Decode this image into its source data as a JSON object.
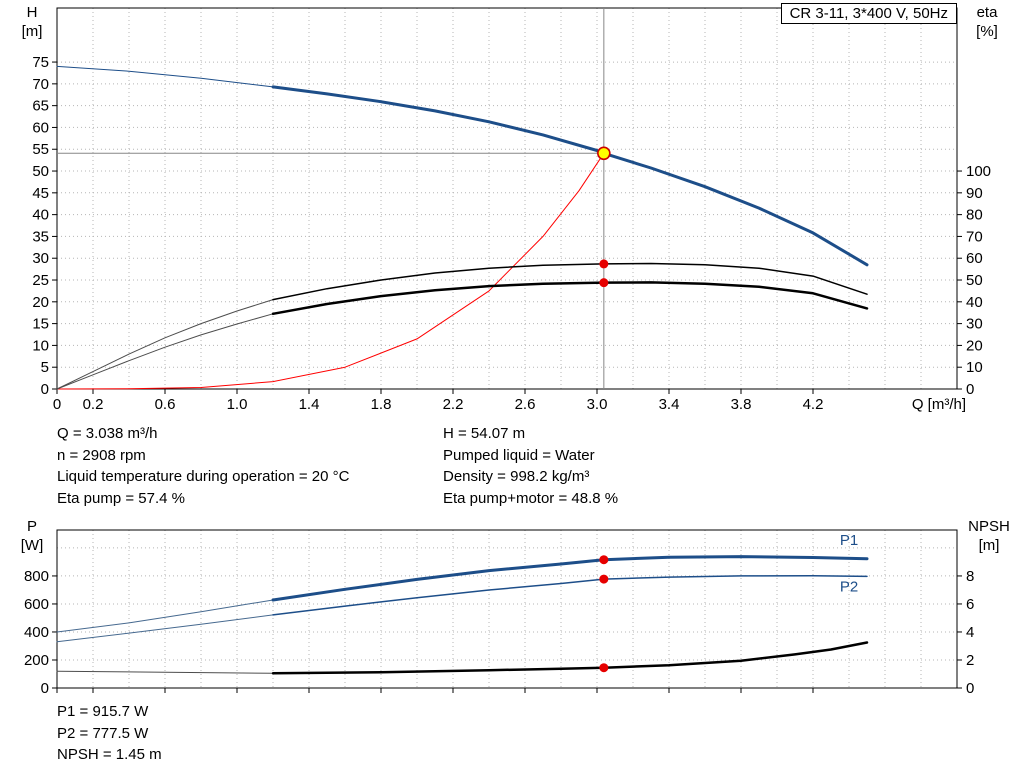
{
  "colors": {
    "curve_blue": "#1d4e89",
    "curve_red": "#ff0000",
    "marker_red": "#e60000",
    "duty_fill": "#ffff00",
    "duty_stroke": "#cc0000",
    "grid": "#b5b5b5",
    "guide": "#878787",
    "lead_gray": "#4d4d4d",
    "lead_blue": "#46698f"
  },
  "info": {
    "q": "Q = 3.038 m³/h",
    "n": "n = 2908 rpm",
    "temp": "Liquid temperature during operation = 20 °C",
    "eta_pump": "Eta pump = 57.4 %",
    "h": "H = 54.07 m",
    "liquid": "Pumped liquid = Water",
    "density": "Density = 998.2 kg/m³",
    "eta_total": "Eta pump+motor = 48.8 %"
  },
  "footer": {
    "p1": "P1 = 915.7 W",
    "p2": "P2 = 777.5 W",
    "npsh": "NPSH = 1.45 m"
  },
  "chart_data": [
    {
      "type": "line",
      "name": "hq-eta-chart",
      "title": "CR 3-11, 3*400 V, 50Hz",
      "x": {
        "label": "Q [m³/h]",
        "min": 0,
        "max": 5.0,
        "minor_step": 0.2,
        "tick_values": [
          0,
          0.2,
          0.6,
          1.0,
          1.4,
          1.8,
          2.2,
          2.6,
          3.0,
          3.4,
          3.8,
          4.2
        ],
        "tick_labels": [
          "0",
          "0.2",
          "0.6",
          "1.0",
          "1.4",
          "1.8",
          "2.2",
          "2.6",
          "3.0",
          "3.4",
          "3.8",
          "4.2"
        ]
      },
      "left": {
        "title_line1": "H",
        "title_line2": "[m]",
        "min": 0,
        "max": 87.4,
        "ticks": [
          0,
          5,
          10,
          15,
          20,
          25,
          30,
          35,
          40,
          45,
          50,
          55,
          60,
          65,
          70,
          75
        ],
        "grid_values": [
          5,
          10,
          15,
          20,
          25,
          30,
          35,
          40,
          45,
          50,
          55,
          60,
          65,
          70,
          75
        ]
      },
      "right": {
        "title_line1": "eta",
        "title_line2": "[%]",
        "ticks": [
          0,
          10,
          20,
          30,
          40,
          50,
          60,
          70,
          80,
          90,
          100
        ],
        "left_units_per_unit": 0.5
      },
      "series": [
        {
          "name": "h-curve-lead",
          "axis": "left",
          "color": "#1d4e89",
          "width": 1,
          "points": [
            [
              0,
              74
            ],
            [
              0.4,
              72.9
            ],
            [
              0.8,
              71.3
            ],
            [
              1.2,
              69.3
            ]
          ]
        },
        {
          "name": "system-curve",
          "axis": "left",
          "color": "#ff0000",
          "width": 1,
          "points": [
            [
              0,
              0
            ],
            [
              0.4,
              0.05
            ],
            [
              0.8,
              0.35
            ],
            [
              1.2,
              1.7
            ],
            [
              1.6,
              5.0
            ],
            [
              2.0,
              11.5
            ],
            [
              2.4,
              22.5
            ],
            [
              2.7,
              35
            ],
            [
              2.9,
              45.5
            ],
            [
              3.038,
              54.07
            ]
          ]
        },
        {
          "name": "eta-pump-lead",
          "axis": "right",
          "color": "#4d4d4d",
          "width": 1,
          "points": [
            [
              0,
              0
            ],
            [
              0.2,
              8
            ],
            [
              0.4,
              16
            ],
            [
              0.6,
              23.5
            ],
            [
              0.8,
              30
            ],
            [
              1.0,
              35.8
            ],
            [
              1.2,
              41
            ]
          ]
        },
        {
          "name": "eta-total-lead",
          "axis": "right",
          "color": "#4d4d4d",
          "width": 1,
          "points": [
            [
              0,
              0
            ],
            [
              0.2,
              6.5
            ],
            [
              0.4,
              13
            ],
            [
              0.6,
              19.2
            ],
            [
              0.8,
              24.8
            ],
            [
              1.0,
              29.8
            ],
            [
              1.2,
              34.5
            ]
          ]
        },
        {
          "name": "eta-pump-curve",
          "axis": "right",
          "color": "#000000",
          "width": 1.5,
          "points": [
            [
              1.2,
              41
            ],
            [
              1.5,
              46
            ],
            [
              1.8,
              50
            ],
            [
              2.1,
              53.2
            ],
            [
              2.4,
              55.4
            ],
            [
              2.7,
              56.8
            ],
            [
              3.038,
              57.4
            ],
            [
              3.3,
              57.6
            ],
            [
              3.6,
              57.0
            ],
            [
              3.9,
              55.4
            ],
            [
              4.2,
              51.8
            ],
            [
              4.5,
              43.5
            ]
          ]
        },
        {
          "name": "eta-total-curve",
          "axis": "right",
          "color": "#000000",
          "width": 2.5,
          "points": [
            [
              1.2,
              34.5
            ],
            [
              1.5,
              39
            ],
            [
              1.8,
              42.6
            ],
            [
              2.1,
              45.3
            ],
            [
              2.4,
              47.2
            ],
            [
              2.7,
              48.3
            ],
            [
              3.038,
              48.8
            ],
            [
              3.3,
              48.9
            ],
            [
              3.6,
              48.3
            ],
            [
              3.9,
              46.9
            ],
            [
              4.2,
              43.9
            ],
            [
              4.5,
              37
            ]
          ]
        },
        {
          "name": "h-curve",
          "axis": "left",
          "color": "#1d4e89",
          "width": 3,
          "points": [
            [
              1.2,
              69.3
            ],
            [
              1.5,
              67.7
            ],
            [
              1.8,
              65.9
            ],
            [
              2.1,
              63.8
            ],
            [
              2.4,
              61.3
            ],
            [
              2.7,
              58.3
            ],
            [
              3.0,
              54.7
            ],
            [
              3.038,
              54.07
            ],
            [
              3.3,
              50.7
            ],
            [
              3.6,
              46.4
            ],
            [
              3.9,
              41.5
            ],
            [
              4.2,
              35.8
            ],
            [
              4.5,
              28.5
            ]
          ]
        }
      ],
      "guides": {
        "vertical_q": 3.038,
        "horizontal_v": 54.07
      },
      "markers": [
        {
          "name": "eta-pump-point",
          "axis": "right",
          "q": 3.038,
          "v": 57.4,
          "kind": "red"
        },
        {
          "name": "eta-total-point",
          "axis": "right",
          "q": 3.038,
          "v": 48.8,
          "kind": "red"
        },
        {
          "name": "duty-point",
          "axis": "left",
          "q": 3.038,
          "v": 54.07,
          "kind": "duty"
        }
      ],
      "labels": []
    },
    {
      "type": "line",
      "name": "power-npsh-chart",
      "x": {
        "min": 0,
        "max": 5.0,
        "minor_step": 0.2,
        "tick_values": [
          0,
          0.2,
          0.6,
          1.0,
          1.4,
          1.8,
          2.2,
          2.6,
          3.0,
          3.4,
          3.8,
          4.2
        ]
      },
      "left": {
        "title_line1": "P",
        "title_line2": "[W]",
        "min": 0,
        "max": 1128,
        "ticks": [
          0,
          200,
          400,
          600,
          800
        ],
        "grid_values": [
          200,
          400,
          600,
          800,
          1000
        ]
      },
      "right": {
        "title_line1": "NPSH",
        "title_line2": "[m]",
        "ticks": [
          0,
          2,
          4,
          6,
          8
        ],
        "left_units_per_unit": 100
      },
      "series": [
        {
          "name": "p1-lead",
          "axis": "left",
          "color": "#46698f",
          "width": 1,
          "points": [
            [
              0,
              400
            ],
            [
              0.4,
              465
            ],
            [
              0.8,
              545
            ],
            [
              1.2,
              628
            ]
          ]
        },
        {
          "name": "p2-lead",
          "axis": "left",
          "color": "#46698f",
          "width": 1,
          "points": [
            [
              0,
              330
            ],
            [
              0.4,
              392
            ],
            [
              0.8,
              455
            ],
            [
              1.2,
              522
            ]
          ]
        },
        {
          "name": "npsh-lead",
          "axis": "right",
          "color": "#4d4d4d",
          "width": 1,
          "points": [
            [
              0,
              1.2
            ],
            [
              0.6,
              1.12
            ],
            [
              1.2,
              1.05
            ]
          ]
        },
        {
          "name": "p2-curve",
          "axis": "left",
          "color": "#1d4e89",
          "width": 1.5,
          "points": [
            [
              1.2,
              522
            ],
            [
              1.6,
              585
            ],
            [
              2.0,
              645
            ],
            [
              2.4,
              700
            ],
            [
              2.8,
              746
            ],
            [
              3.038,
              777.5
            ],
            [
              3.4,
              792
            ],
            [
              3.8,
              800
            ],
            [
              4.2,
              801
            ],
            [
              4.5,
              797
            ]
          ]
        },
        {
          "name": "p1-curve",
          "axis": "left",
          "color": "#1d4e89",
          "width": 3,
          "points": [
            [
              1.2,
              628
            ],
            [
              1.6,
              705
            ],
            [
              2.0,
              775
            ],
            [
              2.4,
              838
            ],
            [
              2.8,
              885
            ],
            [
              3.038,
              915.7
            ],
            [
              3.4,
              933
            ],
            [
              3.8,
              938
            ],
            [
              4.2,
              932
            ],
            [
              4.5,
              923
            ]
          ]
        },
        {
          "name": "npsh-curve",
          "axis": "right",
          "color": "#000000",
          "width": 2.5,
          "points": [
            [
              1.2,
              1.05
            ],
            [
              1.8,
              1.12
            ],
            [
              2.4,
              1.27
            ],
            [
              2.8,
              1.37
            ],
            [
              3.038,
              1.45
            ],
            [
              3.4,
              1.62
            ],
            [
              3.8,
              1.95
            ],
            [
              4.1,
              2.4
            ],
            [
              4.3,
              2.75
            ],
            [
              4.5,
              3.25
            ]
          ]
        }
      ],
      "markers": [
        {
          "name": "p1-point",
          "axis": "left",
          "q": 3.038,
          "v": 915.7,
          "kind": "red"
        },
        {
          "name": "p2-point",
          "axis": "left",
          "q": 3.038,
          "v": 777.5,
          "kind": "red"
        },
        {
          "name": "npsh-point",
          "axis": "right",
          "q": 3.038,
          "v": 1.45,
          "kind": "red"
        }
      ],
      "labels": [
        {
          "name": "p1-curve-label",
          "text": "P1",
          "axis": "left",
          "q": 4.4,
          "v": 1020,
          "color": "#1d4e89"
        },
        {
          "name": "p2-curve-label",
          "text": "P2",
          "axis": "left",
          "q": 4.4,
          "v": 690,
          "color": "#1d4e89"
        }
      ]
    }
  ]
}
